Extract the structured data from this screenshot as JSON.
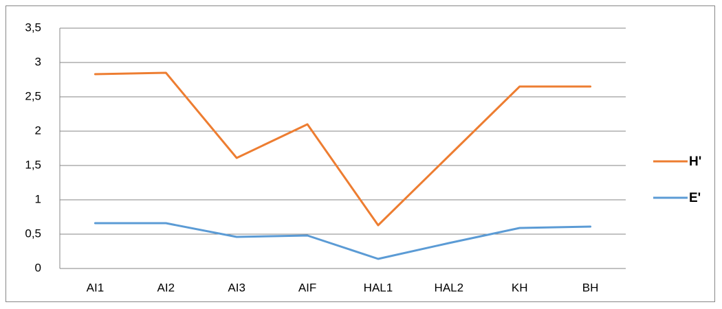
{
  "chart_data": {
    "type": "line",
    "categories": [
      "AI1",
      "AI2",
      "AI3",
      "AIF",
      "HAL1",
      "HAL2",
      "KH",
      "BH"
    ],
    "series": [
      {
        "name": "H'",
        "color": "#ed7d31",
        "values": [
          2.83,
          2.85,
          1.61,
          2.1,
          0.63,
          1.64,
          2.65,
          2.65
        ]
      },
      {
        "name": "E'",
        "color": "#5b9bd5",
        "values": [
          0.66,
          0.66,
          0.46,
          0.48,
          0.14,
          0.37,
          0.59,
          0.61
        ]
      }
    ],
    "ylim": [
      0,
      3.5
    ],
    "yticks": [
      0,
      {
        "value": 0.5,
        "label": "0,5"
      },
      1,
      {
        "value": 1.5,
        "label": "1,5"
      },
      2,
      {
        "value": 2.5,
        "label": "2,5"
      },
      3,
      {
        "value": 3.5,
        "label": "3,5"
      }
    ],
    "grid": true,
    "legend": "right"
  }
}
